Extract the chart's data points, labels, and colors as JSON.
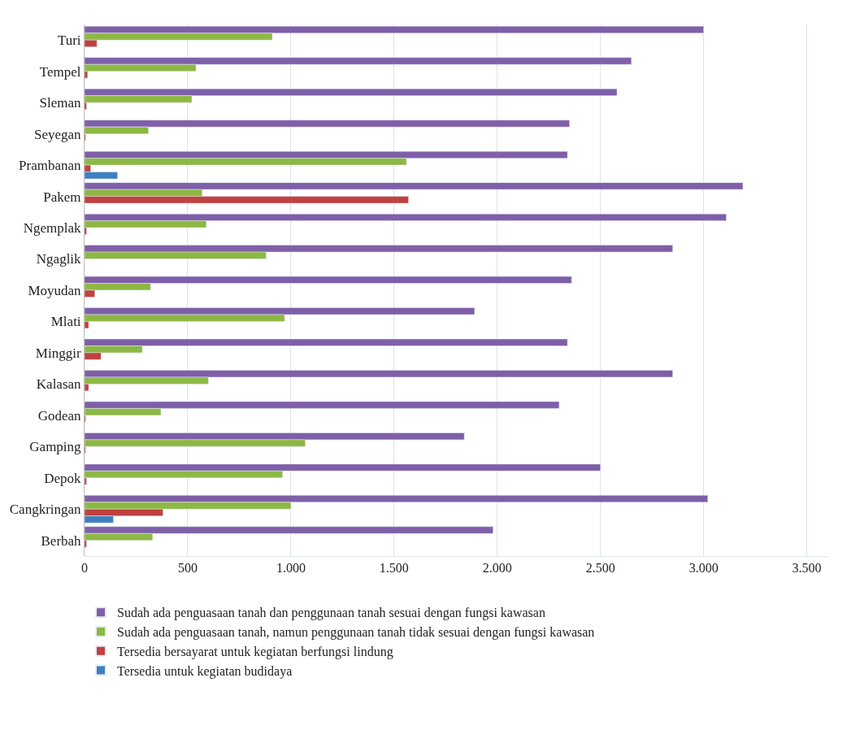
{
  "chart_data": {
    "type": "bar",
    "orientation": "horizontal",
    "categories": [
      "Turi",
      "Tempel",
      "Sleman",
      "Seyegan",
      "Prambanan",
      "Pakem",
      "Ngemplak",
      "Ngaglik",
      "Moyudan",
      "Mlati",
      "Minggir",
      "Kalasan",
      "Godean",
      "Gamping",
      "Depok",
      "Cangkringan",
      "Berbah"
    ],
    "series": [
      {
        "name": "Sudah ada penguasaan tanah dan penggunaan tanah sesuai dengan fungsi kawasan",
        "color": "#7f5fa8",
        "values": [
          3000,
          2650,
          2580,
          2350,
          2340,
          3190,
          3110,
          2850,
          2360,
          1890,
          2340,
          2850,
          2300,
          1840,
          2500,
          3020,
          1980
        ]
      },
      {
        "name": "Sudah ada penguasaan tanah, namun penggunaan tanah tidak sesuai dengan fungsi kawasan",
        "color": "#8db843",
        "values": [
          910,
          540,
          520,
          310,
          1560,
          570,
          590,
          880,
          320,
          970,
          280,
          600,
          370,
          1070,
          960,
          1000,
          330
        ]
      },
      {
        "name": "Tersedia bersayarat untuk kegiatan berfungsi lindung",
        "color": "#c0413f",
        "values": [
          60,
          15,
          10,
          5,
          30,
          1570,
          10,
          null,
          50,
          20,
          80,
          20,
          5,
          5,
          10,
          380,
          10
        ]
      },
      {
        "name": "Tersedia untuk kegiatan budidaya",
        "color": "#3f7fbf",
        "values": [
          null,
          null,
          null,
          null,
          160,
          null,
          null,
          null,
          null,
          null,
          null,
          null,
          null,
          null,
          null,
          140,
          null
        ]
      }
    ],
    "xlim": [
      0,
      3600
    ],
    "xticks": [
      {
        "value": 0,
        "label": "0"
      },
      {
        "value": 500,
        "label": "500"
      },
      {
        "value": 1000,
        "label": "1.000"
      },
      {
        "value": 1500,
        "label": "1.500"
      },
      {
        "value": 2000,
        "label": "2.000"
      },
      {
        "value": 2500,
        "label": "2.500"
      },
      {
        "value": 3000,
        "label": "3.000"
      },
      {
        "value": 3500,
        "label": "3.500"
      }
    ],
    "grid": "x",
    "legend": "bottom"
  }
}
